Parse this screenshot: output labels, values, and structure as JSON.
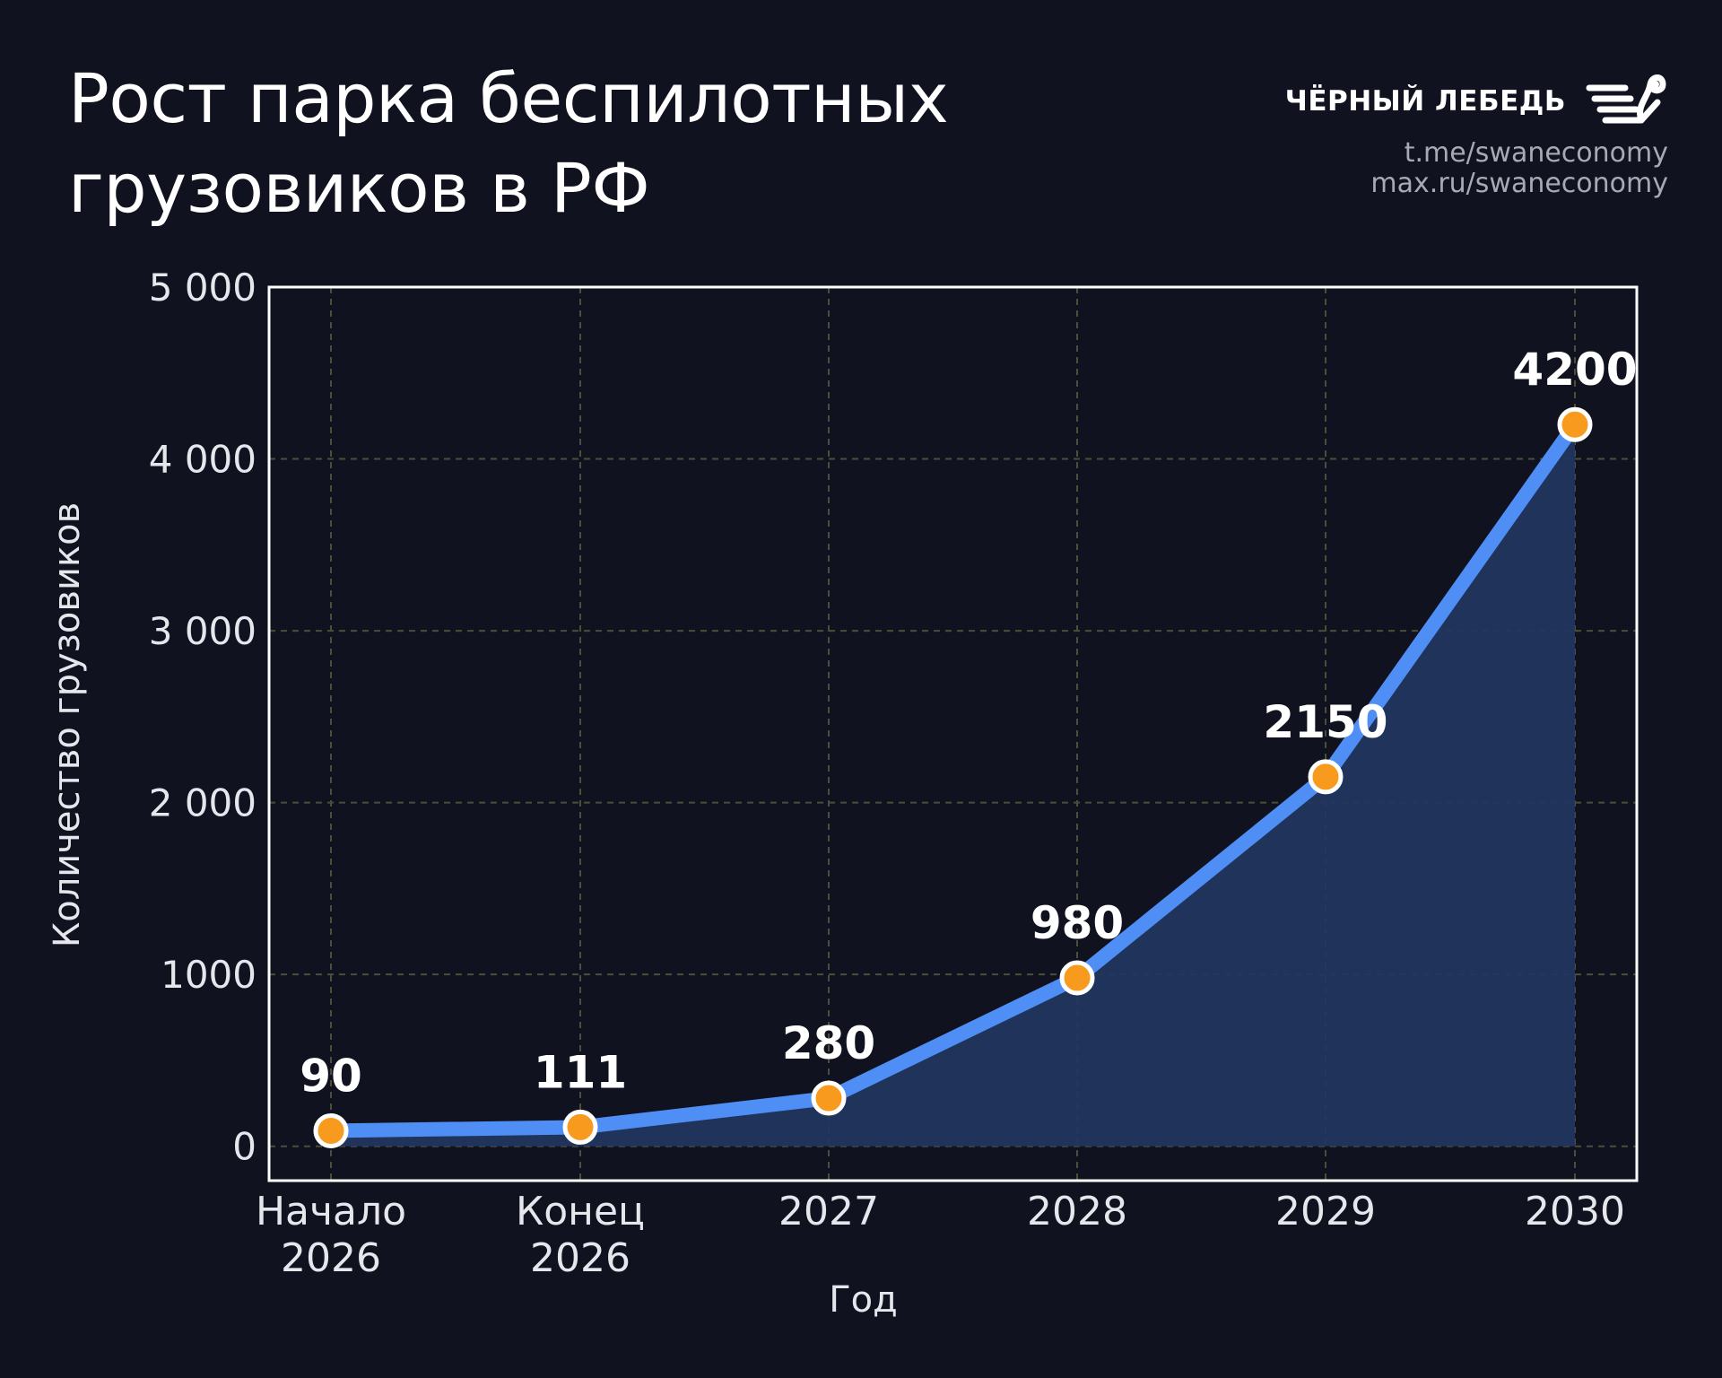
{
  "header": {
    "title_line1": "Рост парка беспилотных",
    "title_line2": "грузовиков в РФ"
  },
  "brand": {
    "name": "ЧЁРНЫЙ ЛЕБЕДЬ",
    "logo_icon": "swan-logo-icon",
    "link1": "t.me/swaneconomy",
    "link2": "max.ru/swaneconomy"
  },
  "colors": {
    "background": "#10121f",
    "line": "#4f8ff5",
    "area": "#22365f",
    "marker": "#f79a1e",
    "marker_stroke": "#ffffff",
    "grid": "#4a4f3a",
    "frame": "#ffffff"
  },
  "chart_data": {
    "type": "line",
    "categories": [
      [
        "Начало",
        "2026"
      ],
      [
        "Конец",
        "2026"
      ],
      [
        "2027"
      ],
      [
        "2028"
      ],
      [
        "2029"
      ],
      [
        "2030"
      ]
    ],
    "values": [
      90,
      111,
      280,
      980,
      2150,
      4200
    ],
    "data_labels": [
      "90",
      "111",
      "280",
      "980",
      "2150",
      "4200"
    ],
    "yticks": [
      0,
      1000,
      2000,
      3000,
      4000,
      5000
    ],
    "ytick_labels": [
      "0",
      "1000",
      "2 000",
      "3 000",
      "4 000",
      "5 000"
    ],
    "ylim": [
      -200,
      5000
    ],
    "xlabel": "Год",
    "ylabel": "Количество грузовиков",
    "grid": true,
    "area_fill": true
  }
}
